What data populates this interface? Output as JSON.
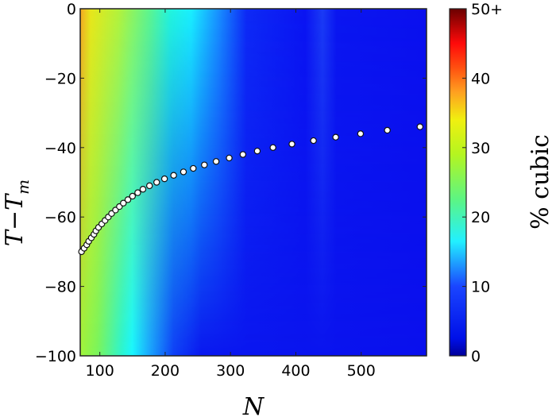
{
  "chart_data": {
    "type": "heatmap",
    "title": "",
    "xlabel": "N",
    "ylabel": "T−T_m",
    "ylabel_main": "T−T",
    "ylabel_sub": "m",
    "xlim": [
      70,
      600
    ],
    "ylim": [
      -100,
      0
    ],
    "xticks": [
      100,
      200,
      300,
      400,
      500
    ],
    "xtick_labels": [
      "100",
      "200",
      "300",
      "400",
      "500"
    ],
    "yticks": [
      0,
      -20,
      -40,
      -60,
      -80,
      -100
    ],
    "ytick_labels": [
      "0",
      "−20",
      "−40",
      "−60",
      "−80",
      "−100"
    ],
    "grid": false,
    "colorbar": {
      "label": "% cubic",
      "range": [
        0,
        50
      ],
      "ticks": [
        0,
        10,
        20,
        30,
        40,
        50
      ],
      "tick_labels": [
        "0",
        "10",
        "20",
        "30",
        "40",
        "50+"
      ],
      "colormap": "jet"
    },
    "heatmap_description": "% cubic decreases with N; ~35% near N=70 (orange/yellow), ~17% near N=150-180 (cyan), ~3% for N>250 (blue). Cyan band tilts: near N~180 at top, N~130 at bottom.",
    "heatmap_profile": {
      "N": [
        70,
        90,
        110,
        130,
        150,
        170,
        190,
        210,
        230,
        260,
        300,
        400,
        600
      ],
      "percent_cubic_top": [
        34,
        30,
        26,
        22,
        20,
        18,
        17,
        12,
        8,
        5,
        4,
        4,
        3
      ],
      "percent_cubic_bottom": [
        28,
        24,
        19,
        17,
        14,
        9,
        6,
        4,
        3,
        3,
        3,
        3,
        3
      ]
    },
    "series": [
      {
        "name": "melting curve",
        "type": "scatter",
        "marker": "white circle, black edge",
        "x": [
          72,
          76,
          80,
          83,
          87,
          91,
          94,
          98,
          103,
          108,
          113,
          118,
          124,
          130,
          136,
          143,
          150,
          158,
          166,
          176,
          187,
          199,
          213,
          228,
          243,
          260,
          278,
          298,
          319,
          341,
          365,
          394,
          427,
          461,
          499,
          540,
          590
        ],
        "y": [
          -70,
          -69,
          -68,
          -67,
          -66,
          -65,
          -64,
          -63,
          -62,
          -61,
          -60,
          -59,
          -58,
          -57,
          -56,
          -55,
          -54,
          -53,
          -52,
          -51,
          -50,
          -49,
          -48,
          -47,
          -46,
          -45,
          -44,
          -43,
          -42,
          -41,
          -40,
          -39,
          -38,
          -37,
          -36,
          -35,
          -34
        ]
      }
    ]
  }
}
